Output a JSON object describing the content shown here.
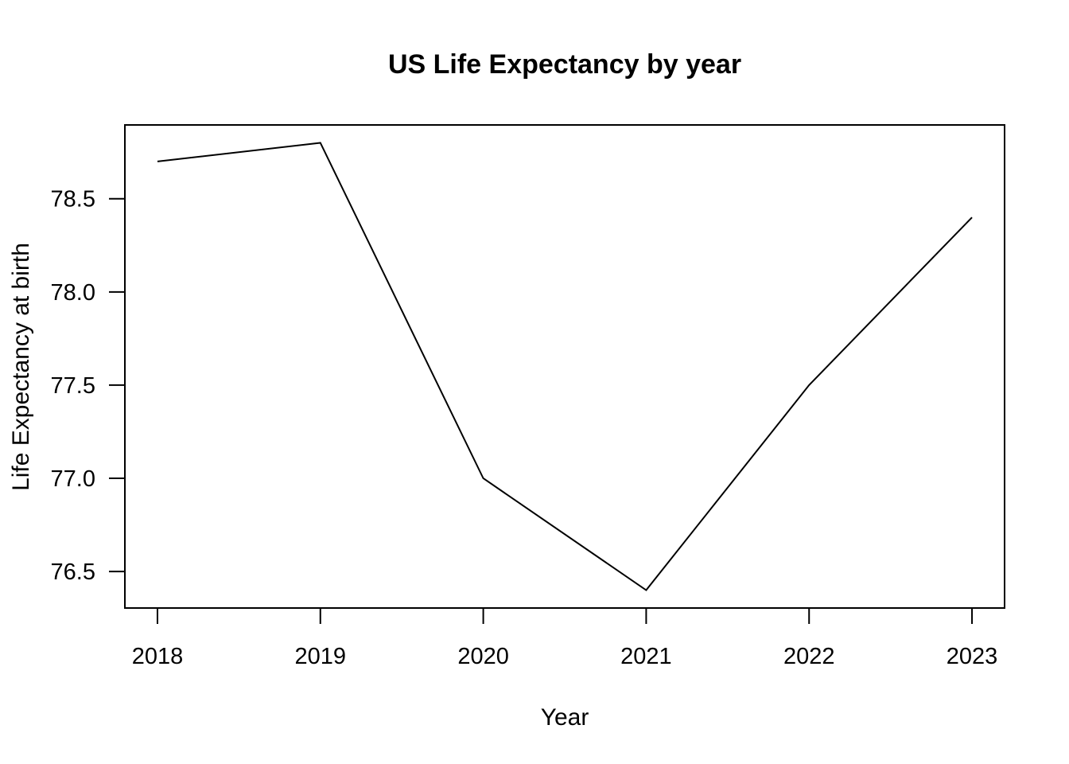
{
  "chart_data": {
    "type": "line",
    "title": "US Life Expectancy by year",
    "xlabel": "Year",
    "ylabel": "Life Expectancy at birth",
    "x": [
      2018,
      2019,
      2020,
      2021,
      2022,
      2023
    ],
    "series": [
      {
        "values": [
          78.7,
          78.8,
          77.0,
          76.4,
          77.5,
          78.4
        ]
      }
    ],
    "x_ticks": [
      "2018",
      "2019",
      "2020",
      "2021",
      "2022",
      "2023"
    ],
    "y_ticks": [
      "76.5",
      "77.0",
      "77.5",
      "78.0",
      "78.5"
    ],
    "xlim": [
      2017.8,
      2023.2
    ],
    "ylim": [
      76.304,
      78.896
    ],
    "grid": false,
    "legend": "none",
    "line_color": "#000000"
  }
}
